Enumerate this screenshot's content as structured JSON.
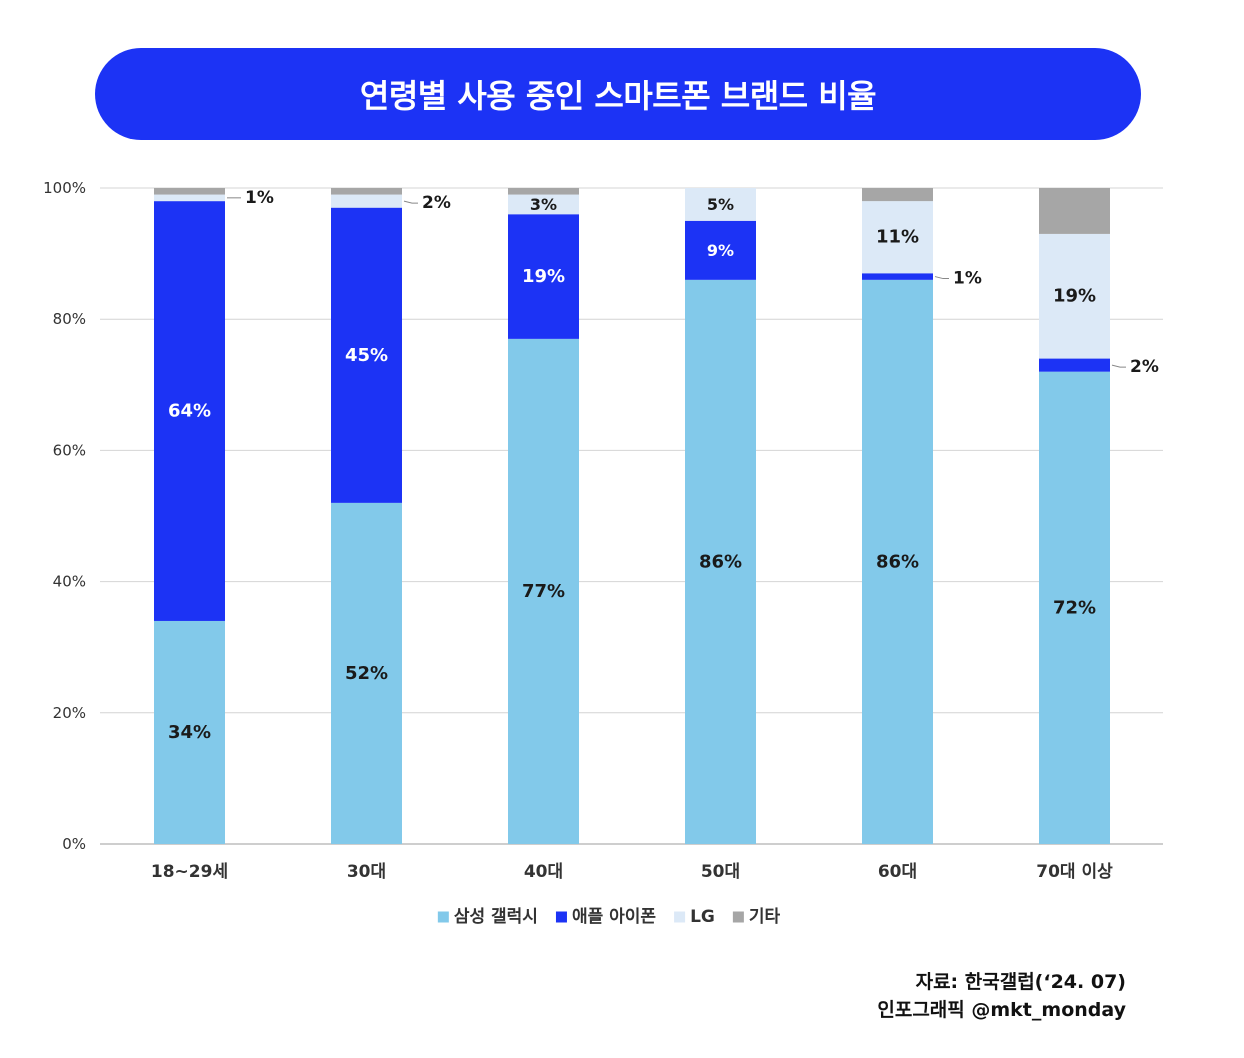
{
  "title": "연령별 사용 중인 스마트폰 브랜드 비율",
  "source": {
    "line1": "자료: 한국갤럽(‘24. 07)",
    "line2": "인포그래픽 @mkt_monday"
  },
  "chart_data": {
    "type": "bar",
    "stacked": true,
    "title": "연령별 사용 중인 스마트폰 브랜드 비율",
    "categories": [
      "18~29세",
      "30대",
      "40대",
      "50대",
      "60대",
      "70대 이상"
    ],
    "ylim": [
      0,
      100
    ],
    "yticks": [
      0,
      20,
      40,
      60,
      80,
      100
    ],
    "ytick_labels": [
      "0%",
      "20%",
      "40%",
      "60%",
      "80%",
      "100%"
    ],
    "grid": true,
    "legend_position": "bottom",
    "series": [
      {
        "name": "삼성 갤럭시",
        "color": "#82c9ea",
        "values": [
          34,
          52,
          77,
          86,
          86,
          72
        ],
        "labels": [
          "34%",
          "52%",
          "77%",
          "86%",
          "86%",
          "72%"
        ],
        "label_color": "#1a1a1a"
      },
      {
        "name": "애플 아이폰",
        "color": "#1c33f5",
        "values": [
          64,
          45,
          19,
          9,
          1,
          2
        ],
        "labels": [
          "64%",
          "45%",
          "19%",
          "9%",
          "1%",
          "2%"
        ],
        "label_color": "#ffffff"
      },
      {
        "name": "LG",
        "color": "#dce9f7",
        "values": [
          1,
          2,
          3,
          5,
          11,
          19
        ],
        "labels": [
          "1%",
          "2%",
          "3%",
          "5%",
          "11%",
          "19%"
        ],
        "label_color": "#1a1a1a"
      },
      {
        "name": "기타",
        "color": "#a6a6a6",
        "values": [
          1,
          1,
          1,
          0,
          2,
          7
        ],
        "labels": [],
        "label_color": "#1a1a1a"
      }
    ]
  }
}
